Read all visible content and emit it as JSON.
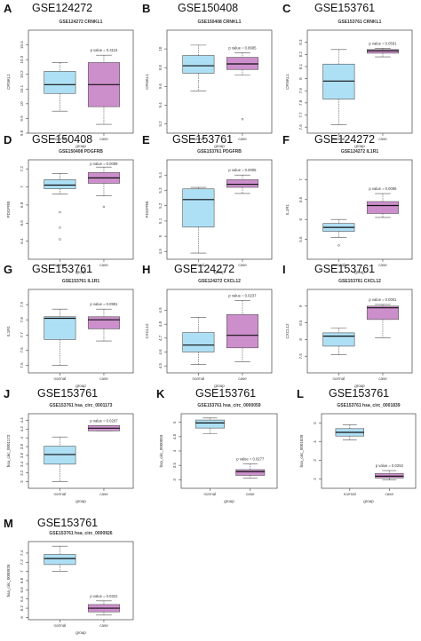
{
  "colors": {
    "normal_fill": "#aee0f5",
    "case_fill": "#cd8fcc",
    "stroke": "#555555",
    "median": "#111111"
  },
  "chart_data": [
    {
      "type": "box",
      "panel": "A",
      "gse": "GSE124272",
      "title": "GSE124272 CRNKL1",
      "ylabel": "CRNKL1",
      "xlabel": "group",
      "categories": [
        "normal",
        "case"
      ],
      "pvalue": "p value = 0.4115",
      "ylim": [
        9.8,
        10.5
      ],
      "yticks": [
        9.8,
        9.9,
        10.0,
        10.1,
        10.2,
        10.3,
        10.4
      ],
      "boxes": [
        {
          "min": 9.95,
          "q1": 10.07,
          "median": 10.13,
          "q3": 10.22,
          "max": 10.28,
          "outliers": []
        },
        {
          "min": 9.86,
          "q1": 9.98,
          "median": 10.13,
          "q3": 10.28,
          "max": 10.33,
          "outliers": []
        }
      ]
    },
    {
      "type": "box",
      "panel": "B",
      "gse": "GSE150408",
      "title": "GSE150408 CRNKL1",
      "ylabel": "CRNKL1",
      "xlabel": "group",
      "categories": [
        "normal",
        "case"
      ],
      "pvalue": "p value = 0.8685",
      "ylim": [
        9.1,
        10.2
      ],
      "yticks": [
        9.2,
        9.4,
        9.6,
        9.8,
        10.0
      ],
      "boxes": [
        {
          "min": 9.55,
          "q1": 9.74,
          "median": 9.82,
          "q3": 9.93,
          "max": 10.04,
          "outliers": []
        },
        {
          "min": 9.72,
          "q1": 9.78,
          "median": 9.84,
          "q3": 9.91,
          "max": 9.96,
          "outliers": [
            9.25
          ]
        }
      ]
    },
    {
      "type": "box",
      "panel": "C",
      "gse": "GSE153761",
      "title": "GSE153761 CRNKL1",
      "ylabel": "CRNKL1",
      "xlabel": "group",
      "categories": [
        "normal",
        "case"
      ],
      "pvalue": "p value = 0.0591",
      "ylim": [
        7.55,
        8.4
      ],
      "yticks": [
        7.6,
        7.7,
        7.8,
        7.9,
        8.0,
        8.1,
        8.2,
        8.3
      ],
      "boxes": [
        {
          "min": 7.62,
          "q1": 7.83,
          "median": 7.98,
          "q3": 8.12,
          "max": 8.24,
          "outliers": []
        },
        {
          "min": 8.18,
          "q1": 8.21,
          "median": 8.23,
          "q3": 8.24,
          "max": 8.25,
          "outliers": []
        }
      ]
    },
    {
      "type": "box",
      "panel": "D",
      "gse": "GSE150408",
      "title": "GSE150408 PDGFRB",
      "ylabel": "PDGFRB",
      "xlabel": "group",
      "categories": [
        "normal",
        "case"
      ],
      "pvalue": "p value = 0.0099",
      "ylim": [
        6.2,
        7.3
      ],
      "yticks": [
        6.4,
        6.6,
        6.8,
        7.0,
        7.2
      ],
      "boxes": [
        {
          "min": 6.92,
          "q1": 6.98,
          "median": 7.02,
          "q3": 7.08,
          "max": 7.15,
          "outliers": [
            6.72,
            6.55,
            6.42
          ]
        },
        {
          "min": 6.9,
          "q1": 7.04,
          "median": 7.1,
          "q3": 7.16,
          "max": 7.22,
          "outliers": [
            6.78
          ]
        }
      ]
    },
    {
      "type": "box",
      "panel": "E",
      "gse": "GSE153761",
      "title": "GSE153761 PDGFRB",
      "ylabel": "PDGFRB",
      "xlabel": "group",
      "categories": [
        "normal",
        "case"
      ],
      "pvalue": "p value = 0.0005",
      "ylim": [
        4.85,
        5.5
      ],
      "yticks": [
        4.9,
        5.0,
        5.1,
        5.2,
        5.3,
        5.4
      ],
      "boxes": [
        {
          "min": 4.89,
          "q1": 5.06,
          "median": 5.24,
          "q3": 5.31,
          "max": 5.32,
          "outliers": []
        },
        {
          "min": 5.28,
          "q1": 5.32,
          "median": 5.34,
          "q3": 5.37,
          "max": 5.4,
          "outliers": []
        }
      ]
    },
    {
      "type": "box",
      "panel": "F",
      "gse": "GSE124272",
      "title": "GSE124272 IL1R1",
      "ylabel": "IL1R1",
      "xlabel": "group",
      "categories": [
        "normal",
        "case"
      ],
      "pvalue": "p value = 0.0095",
      "ylim": [
        5.0,
        7.5
      ],
      "yticks": [
        5.5,
        6.0,
        6.5,
        7.0
      ],
      "boxes": [
        {
          "min": 5.55,
          "q1": 5.7,
          "median": 5.8,
          "q3": 5.9,
          "max": 6.0,
          "outliers": [
            5.35
          ]
        },
        {
          "min": 6.05,
          "q1": 6.15,
          "median": 6.35,
          "q3": 6.45,
          "max": 6.65,
          "outliers": []
        }
      ]
    },
    {
      "type": "box",
      "panel": "G",
      "gse": "GSE153761",
      "title": "GSE153761 IL1R1",
      "ylabel": "IL1R1",
      "xlabel": "group",
      "categories": [
        "normal",
        "case"
      ],
      "pvalue": "p value = 0.0981",
      "ylim": [
        7.45,
        8.0
      ],
      "yticks": [
        7.5,
        7.6,
        7.7,
        7.8,
        7.9
      ],
      "boxes": [
        {
          "min": 7.5,
          "q1": 7.67,
          "median": 7.81,
          "q3": 7.82,
          "max": 7.87,
          "outliers": []
        },
        {
          "min": 7.66,
          "q1": 7.74,
          "median": 7.8,
          "q3": 7.82,
          "max": 7.87,
          "outliers": []
        }
      ]
    },
    {
      "type": "box",
      "panel": "H",
      "gse": "GSE124272",
      "title": "GSE124272 CXCL12",
      "ylabel": "CXCL12",
      "xlabel": "group",
      "categories": [
        "normal",
        "case"
      ],
      "pvalue": "p value = 0.0237",
      "ylim": [
        4.45,
        5.05
      ],
      "yticks": [
        4.5,
        4.6,
        4.7,
        4.8,
        4.9
      ],
      "boxes": [
        {
          "min": 4.51,
          "q1": 4.6,
          "median": 4.65,
          "q3": 4.74,
          "max": 4.85,
          "outliers": []
        },
        {
          "min": 4.53,
          "q1": 4.63,
          "median": 4.72,
          "q3": 4.87,
          "max": 4.97,
          "outliers": []
        }
      ]
    },
    {
      "type": "box",
      "panel": "I",
      "gse": "GSE153761",
      "title": "GSE153761 CXCL12",
      "ylabel": "CXCL12",
      "xlabel": "group",
      "categories": [
        "normal",
        "case"
      ],
      "pvalue": "p value = 0.0001",
      "ylim": [
        7.0,
        9.5
      ],
      "yticks": [
        7.5,
        8.0,
        8.5,
        9.0
      ],
      "boxes": [
        {
          "min": 7.55,
          "q1": 7.8,
          "median": 8.1,
          "q3": 8.2,
          "max": 8.35,
          "outliers": []
        },
        {
          "min": 8.05,
          "q1": 8.6,
          "median": 8.95,
          "q3": 9.0,
          "max": 9.05,
          "outliers": []
        }
      ]
    },
    {
      "type": "box",
      "panel": "J",
      "gse": "GSE153761",
      "title": "GSE153761 hsa_circ_0001173",
      "ylabel": "hsa_circ_0001173",
      "xlabel": "group",
      "categories": [
        "normal",
        "case"
      ],
      "pvalue": "p value = 0.0297",
      "ylim": [
        2.85,
        4.55
      ],
      "yticks": [
        3.0,
        3.2,
        3.4,
        3.6,
        3.8,
        4.0,
        4.2,
        4.4
      ],
      "boxes": [
        {
          "min": 3.0,
          "q1": 3.4,
          "median": 3.62,
          "q3": 3.81,
          "max": 4.02,
          "outliers": []
        },
        {
          "min": 4.16,
          "q1": 4.16,
          "median": 4.22,
          "q3": 4.28,
          "max": 4.28,
          "outliers": []
        }
      ]
    },
    {
      "type": "box",
      "panel": "K",
      "gse": "GSE153761",
      "title": "GSE153761 hsa_circ_0000059",
      "ylabel": "hsa_circ_0000059",
      "xlabel": "group",
      "categories": [
        "normal",
        "case"
      ],
      "pvalue": "p value = 0.0277",
      "ylim": [
        2.7,
        5.3
      ],
      "yticks": [
        3.0,
        3.5,
        4.0,
        4.5,
        5.0
      ],
      "boxes": [
        {
          "min": 4.6,
          "q1": 4.8,
          "median": 4.98,
          "q3": 5.08,
          "max": 5.15,
          "outliers": []
        },
        {
          "min": 3.05,
          "q1": 3.15,
          "median": 3.28,
          "q3": 3.35,
          "max": 3.55,
          "outliers": []
        }
      ]
    },
    {
      "type": "box",
      "panel": "L",
      "gse": "GSE153761",
      "title": "GSE153761 hsa_circ_0001839",
      "ylabel": "hsa_circ_0001839",
      "xlabel": "group",
      "categories": [
        "normal",
        "case"
      ],
      "pvalue": "p value = 0.0253",
      "ylim": [
        1.5,
        5.5
      ],
      "yticks": [
        2,
        3,
        4,
        5
      ],
      "boxes": [
        {
          "min": 4.1,
          "q1": 4.3,
          "median": 4.5,
          "q3": 4.7,
          "max": 4.9,
          "outliers": []
        },
        {
          "min": 1.95,
          "q1": 2.05,
          "median": 2.15,
          "q3": 2.3,
          "max": 2.45,
          "outliers": []
        }
      ]
    },
    {
      "type": "box",
      "panel": "M",
      "gse": "GSE153761",
      "title": "GSE153761 hsa_circ_0000926",
      "ylabel": "hsa_circ_0000926",
      "xlabel": "group",
      "categories": [
        "normal",
        "case"
      ],
      "pvalue": "p value = 0.0321",
      "ylim": [
        5.95,
        7.65
      ],
      "yticks": [
        6.0,
        6.2,
        6.4,
        6.6,
        6.8,
        7.0,
        7.2,
        7.4
      ],
      "boxes": [
        {
          "min": 7.0,
          "q1": 7.15,
          "median": 7.28,
          "q3": 7.37,
          "max": 7.55,
          "outliers": []
        },
        {
          "min": 6.05,
          "q1": 6.12,
          "median": 6.2,
          "q3": 6.28,
          "max": 6.36,
          "outliers": []
        }
      ]
    }
  ]
}
